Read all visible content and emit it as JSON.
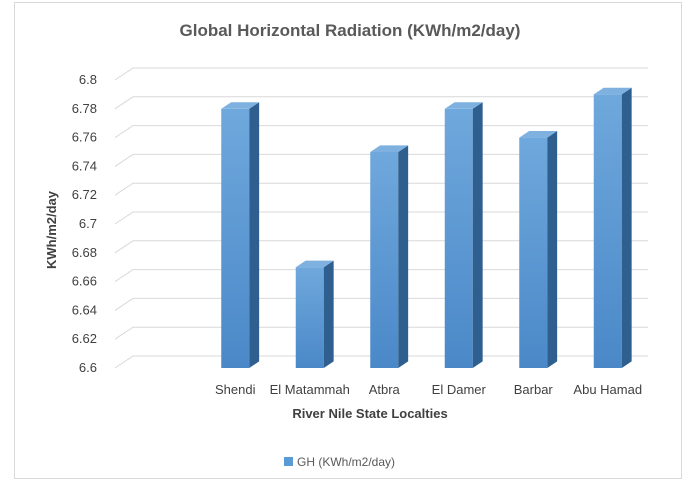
{
  "chart_data": {
    "type": "bar",
    "title": "Global Horizontal Radiation (KWh/m2/day)",
    "xlabel": "River Nile State Localties",
    "ylabel": "KWh/m2/day",
    "categories": [
      "Shendi",
      "El Matammah",
      "Atbra",
      "El Damer",
      "Barbar",
      "Abu Hamad"
    ],
    "series": [
      {
        "name": "GH (KWh/m2/day)",
        "values": [
          6.78,
          6.67,
          6.75,
          6.78,
          6.76,
          6.79
        ]
      }
    ],
    "ylim": [
      6.6,
      6.8
    ],
    "yticks": [
      "6.6",
      "6.62",
      "6.64",
      "6.66",
      "6.68",
      "6.7",
      "6.72",
      "6.74",
      "6.76",
      "6.78",
      "6.8"
    ],
    "grid": true,
    "legend_position": "bottom",
    "colors": {
      "bar_front": "#5b9bd5",
      "bar_side": "#2e5f8f",
      "bar_top": "#7fb1e0",
      "grid": "#d9d9d9"
    }
  }
}
